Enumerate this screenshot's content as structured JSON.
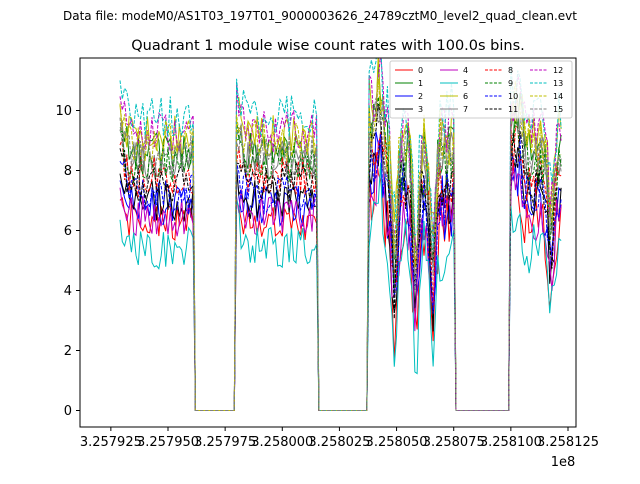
{
  "page": {
    "suptitle": "Data file: modeM0/AS1T03_197T01_9000003626_24789cztM0_level2_quad_clean.evt"
  },
  "chart_data": {
    "type": "line",
    "title": "Quadrant 1 module wise count rates with 100.0s bins.",
    "xlabel": "",
    "ylabel": "",
    "x_offset_label": "1e8",
    "xlim": [
      3.2579115,
      3.2581285
    ],
    "ylim": [
      -0.55,
      11.75
    ],
    "xticks": [
      3.257925,
      3.25795,
      3.257975,
      3.258,
      3.258025,
      3.25805,
      3.258075,
      3.2581,
      3.258125
    ],
    "xtick_labels": [
      "3.257925",
      "3.257950",
      "3.257975",
      "3.258000",
      "3.258025",
      "3.258050",
      "3.258075",
      "3.258100",
      "3.258125"
    ],
    "yticks": [
      0,
      2,
      4,
      6,
      8,
      10
    ],
    "ytick_labels": [
      "0",
      "2",
      "4",
      "6",
      "8",
      "10"
    ],
    "grid": false,
    "legend_position": "top-right",
    "segments": [
      [
        3.257929,
        3.257961
      ],
      [
        3.25798,
        3.258015
      ],
      [
        3.258038,
        3.258075
      ],
      [
        3.2581,
        3.258122
      ]
    ],
    "series": [
      {
        "name": "0",
        "color": "#ff0000",
        "dash": "solid",
        "level": 6.2
      },
      {
        "name": "1",
        "color": "#008000",
        "dash": "solid",
        "level": 8.6
      },
      {
        "name": "2",
        "color": "#0000ff",
        "dash": "solid",
        "level": 6.8
      },
      {
        "name": "3",
        "color": "#000000",
        "dash": "solid",
        "level": 7.0
      },
      {
        "name": "4",
        "color": "#bf00bf",
        "dash": "solid",
        "level": 6.5
      },
      {
        "name": "5",
        "color": "#00bfbf",
        "dash": "solid",
        "level": 5.4
      },
      {
        "name": "6",
        "color": "#bfbf00",
        "dash": "solid",
        "level": 9.2
      },
      {
        "name": "7",
        "color": "#808080",
        "dash": "solid",
        "level": 8.3
      },
      {
        "name": "8",
        "color": "#ff0000",
        "dash": "dashed",
        "level": 7.8
      },
      {
        "name": "9",
        "color": "#008000",
        "dash": "dashed",
        "level": 8.2
      },
      {
        "name": "10",
        "color": "#0000ff",
        "dash": "dashed",
        "level": 7.2
      },
      {
        "name": "11",
        "color": "#000000",
        "dash": "dashed",
        "level": 7.6
      },
      {
        "name": "12",
        "color": "#bf00bf",
        "dash": "dashed",
        "level": 9.3
      },
      {
        "name": "13",
        "color": "#00bfbf",
        "dash": "dashed",
        "level": 9.8
      },
      {
        "name": "14",
        "color": "#bfbf00",
        "dash": "dashed",
        "level": 9.0
      },
      {
        "name": "15",
        "color": "#808080",
        "dash": "dashed",
        "level": 8.5
      }
    ]
  }
}
